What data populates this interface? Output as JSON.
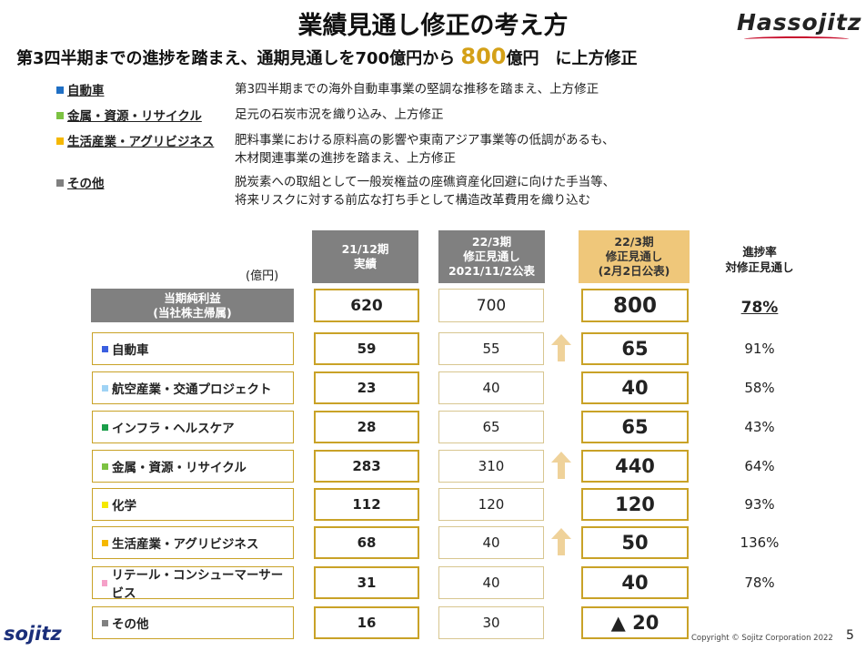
{
  "header": {
    "title": "業績見通し修正の考え方",
    "logo": "Hassojitz",
    "subtitle_pre": "第3四半期までの進捗を踏まえ、通期見通しを700億円から ",
    "subtitle_hl": "800",
    "subtitle_post": "億円　に上方修正"
  },
  "explanations": [
    {
      "category": "自動車",
      "color": "#1f6fc4",
      "desc": [
        "第3四半期までの海外自動車事業の堅調な推移を踏まえ、上方修正"
      ]
    },
    {
      "category": "金属・資源・リサイクル",
      "color": "#7cc242",
      "desc": [
        "足元の石炭市況を織り込み、上方修正"
      ]
    },
    {
      "category": "生活産業・アグリビジネス",
      "color": "#f5b800",
      "desc": [
        "肥料事業における原料高の影響や東南アジア事業等の低調があるも、",
        "木材関連事業の進捗を踏まえ、上方修正"
      ]
    },
    {
      "category": "その他",
      "color": "#808080",
      "desc": [
        "脱炭素への取組として一般炭権益の座礁資産化回避に向けた手当等、",
        "将来リスクに対する前広な打ち手として構造改革費用を織り込む"
      ]
    }
  ],
  "table": {
    "unit": "(億円)",
    "col1": [
      "21/12期",
      "実績"
    ],
    "col2": [
      "22/3期",
      "修正見通し",
      "2021/11/2公表"
    ],
    "col3": [
      "22/3期",
      "修正見通し",
      "(2月2日公表)"
    ],
    "col4": [
      "進捗率",
      "対修正見通し"
    ],
    "total": {
      "label": [
        "当期純利益",
        "(当社株主帰属)"
      ],
      "actual": "620",
      "prev": "700",
      "revised": "800",
      "pct": "78%"
    },
    "rows": [
      {
        "label": "自動車",
        "color": "#3a5fe0",
        "actual": "59",
        "prev": "55",
        "revised": "65",
        "pct": "91%",
        "up": true
      },
      {
        "label": "航空産業・交通プロジェクト",
        "color": "#9fd3f5",
        "actual": "23",
        "prev": "40",
        "revised": "40",
        "pct": "58%",
        "up": false
      },
      {
        "label": "インフラ・ヘルスケア",
        "color": "#1a9e4a",
        "actual": "28",
        "prev": "65",
        "revised": "65",
        "pct": "43%",
        "up": false
      },
      {
        "label": "金属・資源・リサイクル",
        "color": "#7cc242",
        "actual": "283",
        "prev": "310",
        "revised": "440",
        "pct": "64%",
        "up": true
      },
      {
        "label": "化学",
        "color": "#f5e800",
        "actual": "112",
        "prev": "120",
        "revised": "120",
        "pct": "93%",
        "up": false
      },
      {
        "label": "生活産業・アグリビジネス",
        "color": "#f5b800",
        "actual": "68",
        "prev": "40",
        "revised": "50",
        "pct": "136%",
        "up": true
      },
      {
        "label": "リテール・コンシューマーサービス",
        "color": "#f5a0c8",
        "actual": "31",
        "prev": "40",
        "revised": "40",
        "pct": "78%",
        "up": false
      },
      {
        "label": "その他",
        "color": "#808080",
        "actual": "16",
        "prev": "30",
        "revised": "▲ 20",
        "pct": "",
        "up": false
      }
    ]
  },
  "footer": {
    "logo": "sojitz",
    "copyright": "Copyright © Sojitz Corporation 2022",
    "page": "5"
  }
}
